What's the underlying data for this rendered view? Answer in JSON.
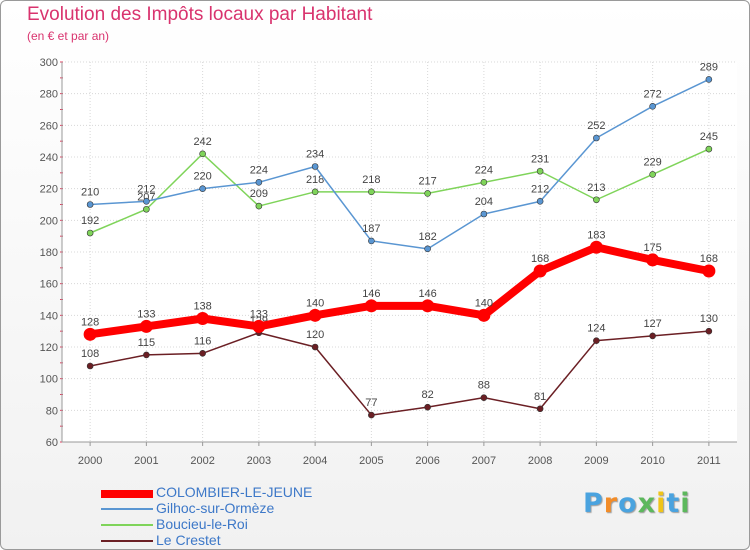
{
  "chart_data": {
    "type": "line",
    "title": "Evolution des Impôts locaux par Habitant",
    "subtitle": "(en € et par an)",
    "categories": [
      "2000",
      "2001",
      "2002",
      "2003",
      "2004",
      "2005",
      "2006",
      "2007",
      "2008",
      "2009",
      "2010",
      "2011"
    ],
    "ylim": [
      60,
      300
    ],
    "yticks": [
      60,
      80,
      100,
      120,
      140,
      160,
      180,
      200,
      220,
      240,
      260,
      280,
      300
    ],
    "grid": true,
    "legend": "bottom-left",
    "series": [
      {
        "name": "Le Crestet",
        "color": "#6b1f24",
        "values": [
          108,
          115,
          116,
          129,
          120,
          77,
          82,
          88,
          81,
          124,
          127,
          130
        ]
      },
      {
        "name": "Boucieu-le-Roi",
        "color": "#7fd45a",
        "values": [
          192,
          207,
          242,
          209,
          218,
          218,
          217,
          224,
          231,
          213,
          229,
          245
        ]
      },
      {
        "name": "Gilhoc-sur-Ormèze",
        "color": "#5a96d2",
        "values": [
          210,
          212,
          220,
          224,
          234,
          187,
          182,
          204,
          212,
          252,
          272,
          289
        ]
      },
      {
        "name": "COLOMBIER-LE-JEUNE",
        "color": "#ff0000",
        "values": [
          128,
          133,
          138,
          133,
          140,
          146,
          146,
          140,
          168,
          183,
          175,
          168
        ]
      }
    ]
  },
  "legend_items": [
    {
      "name": "COLOMBIER-LE-JEUNE",
      "color": "#ff0000",
      "label_color": "#3d78c8"
    },
    {
      "name": "Gilhoc-sur-Ormèze",
      "color": "#5a96d2",
      "label_color": "#3d78c8"
    },
    {
      "name": "Boucieu-le-Roi",
      "color": "#7fd45a",
      "label_color": "#3d78c8"
    },
    {
      "name": "Le Crestet",
      "color": "#6b1f24",
      "label_color": "#3d78c8"
    }
  ],
  "logo": {
    "letters": [
      "P",
      "r",
      "o",
      "x",
      "i",
      "t",
      "i"
    ],
    "colors": [
      "#4aa3df",
      "#f28c28",
      "#4aa3df",
      "#5cb85c",
      "#f0c419",
      "#4aa3df",
      "#5cb85c"
    ]
  }
}
